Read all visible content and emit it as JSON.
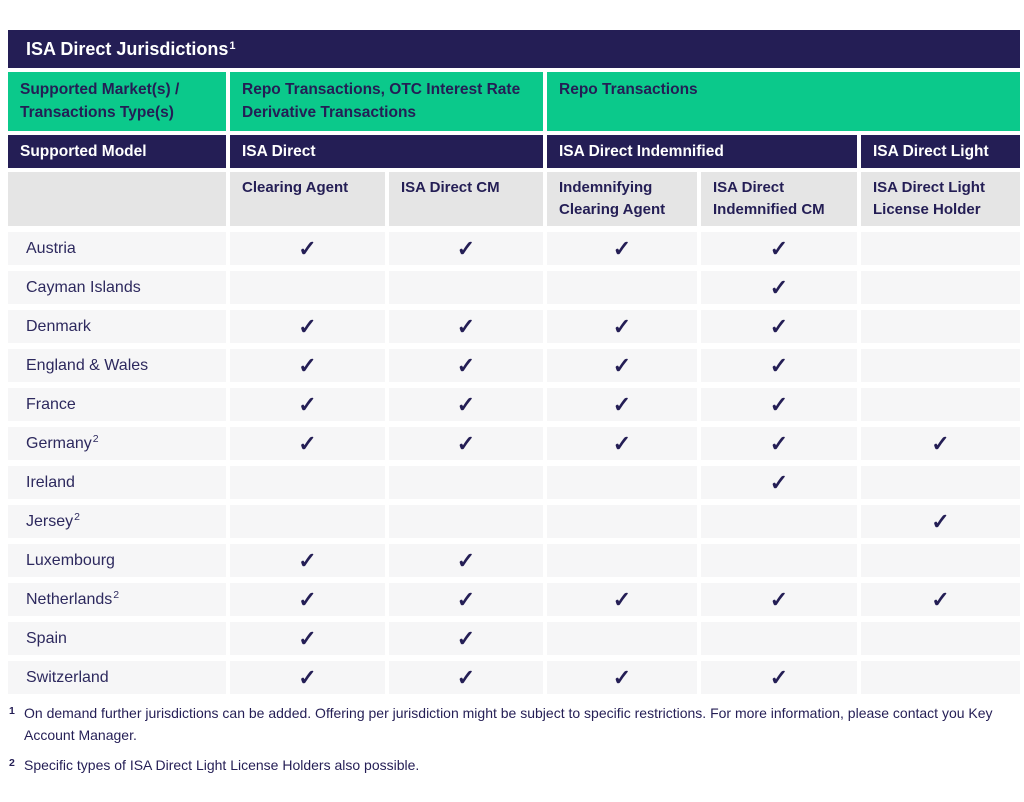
{
  "title": "ISA Direct Jurisdictions",
  "title_superscript": "1",
  "checkmark": "✓",
  "colors": {
    "navy": "#241e55",
    "green": "#0bc98b",
    "header_gray": "#e5e5e5",
    "row_gray": "#f6f6f7"
  },
  "header": {
    "market_label": "Supported Market(s) / Transactions Type(s)",
    "market_groups": [
      {
        "label": "Repo Transactions, OTC Interest Rate Derivative Transactions",
        "span": 2
      },
      {
        "label": "Repo Transactions",
        "span": 3
      }
    ],
    "model_label": "Supported Model",
    "models": [
      {
        "label": "ISA Direct",
        "span": 2
      },
      {
        "label": "ISA Direct Indemnified",
        "span": 2
      },
      {
        "label": "ISA Direct Light",
        "span": 1
      }
    ],
    "columns": [
      "Clearing Agent",
      "ISA Direct CM",
      "Indemnifying Clearing Agent",
      "ISA Direct Indemnified CM",
      "ISA Direct Light License Holder"
    ]
  },
  "rows": [
    {
      "jurisdiction": "Austria",
      "superscript": "",
      "checks": [
        true,
        true,
        true,
        true,
        false
      ]
    },
    {
      "jurisdiction": "Cayman Islands",
      "superscript": "",
      "checks": [
        false,
        false,
        false,
        true,
        false
      ]
    },
    {
      "jurisdiction": "Denmark",
      "superscript": "",
      "checks": [
        true,
        true,
        true,
        true,
        false
      ]
    },
    {
      "jurisdiction": "England & Wales",
      "superscript": "",
      "checks": [
        true,
        true,
        true,
        true,
        false
      ]
    },
    {
      "jurisdiction": "France",
      "superscript": "",
      "checks": [
        true,
        true,
        true,
        true,
        false
      ]
    },
    {
      "jurisdiction": "Germany",
      "superscript": "2",
      "checks": [
        true,
        true,
        true,
        true,
        true
      ]
    },
    {
      "jurisdiction": "Ireland",
      "superscript": "",
      "checks": [
        false,
        false,
        false,
        true,
        false
      ]
    },
    {
      "jurisdiction": "Jersey",
      "superscript": "2",
      "checks": [
        false,
        false,
        false,
        false,
        true
      ]
    },
    {
      "jurisdiction": "Luxembourg",
      "superscript": "",
      "checks": [
        true,
        true,
        false,
        false,
        false
      ]
    },
    {
      "jurisdiction": "Netherlands",
      "superscript": "2",
      "checks": [
        true,
        true,
        true,
        true,
        true
      ]
    },
    {
      "jurisdiction": "Spain",
      "superscript": "",
      "checks": [
        true,
        true,
        false,
        false,
        false
      ]
    },
    {
      "jurisdiction": "Switzerland",
      "superscript": "",
      "checks": [
        true,
        true,
        true,
        true,
        false
      ]
    }
  ],
  "footnotes": [
    {
      "marker": "1",
      "text": "On demand further jurisdictions can be added. Offering per jurisdiction might be subject to specific restrictions. For more information, please contact you Key Account Manager."
    },
    {
      "marker": "2",
      "text": "Specific types of ISA Direct Light License Holders also possible."
    }
  ]
}
